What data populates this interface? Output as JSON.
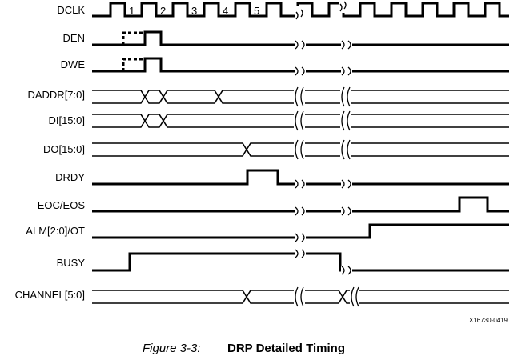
{
  "signals": {
    "dclk": "DCLK",
    "den": "DEN",
    "dwe": "DWE",
    "daddr": "DADDR[7:0]",
    "di": "DI[15:0]",
    "do": "DO[15:0]",
    "drdy": "DRDY",
    "eoc": "EOC/EOS",
    "alm": "ALM[2:0]/OT",
    "busy": "BUSY",
    "channel": "CHANNEL[5:0]"
  },
  "clock_numbers": [
    "1",
    "2",
    "3",
    "4",
    "5"
  ],
  "figure_code": "X16730-0419",
  "caption": {
    "number": "Figure 3-3:",
    "title": "DRP Detailed Timing"
  }
}
